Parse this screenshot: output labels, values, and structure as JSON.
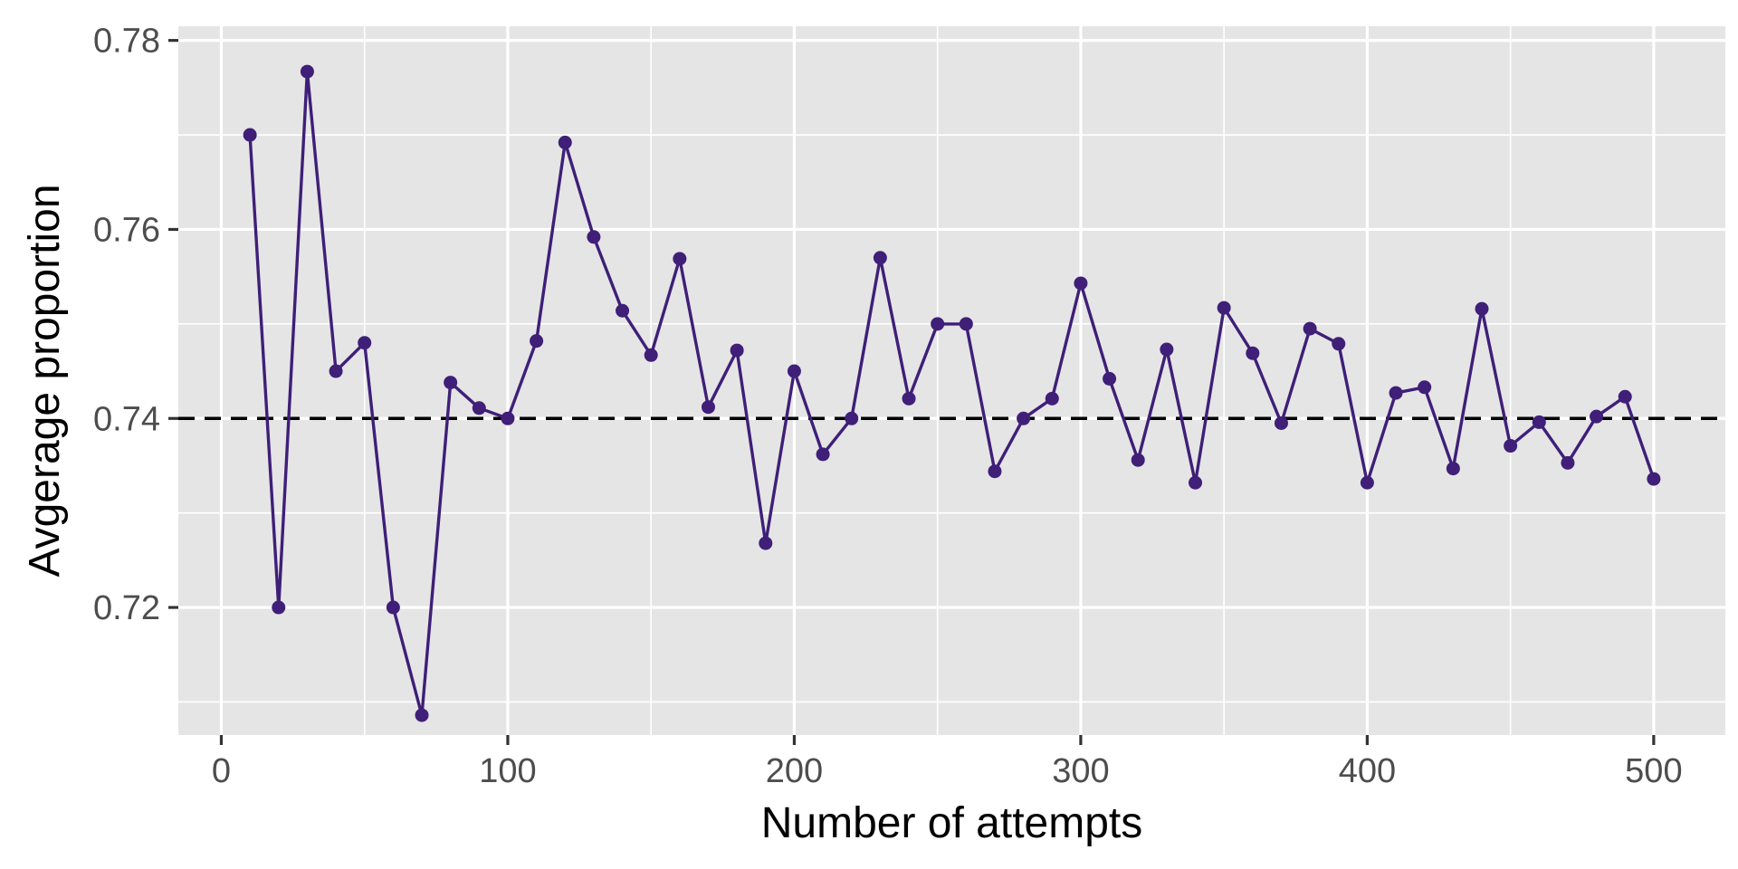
{
  "chart_data": {
    "type": "line",
    "title": "",
    "xlabel": "Number of attempts",
    "ylabel": "Avgerage proportion",
    "xlim": [
      -15,
      525
    ],
    "ylim": [
      0.7065,
      0.7815
    ],
    "x_ticks": [
      0,
      100,
      200,
      300,
      400,
      500
    ],
    "x_tick_labels": [
      "0",
      "100",
      "200",
      "300",
      "400",
      "500"
    ],
    "x_minor_ticks": [
      50,
      150,
      250,
      350,
      450
    ],
    "y_ticks": [
      0.72,
      0.74,
      0.76,
      0.78
    ],
    "y_tick_labels": [
      "0.72",
      "0.74",
      "0.76",
      "0.78"
    ],
    "y_minor_ticks": [
      0.71,
      0.73,
      0.75,
      0.77
    ],
    "grid": true,
    "reference_line": {
      "y": 0.74,
      "style": "dashed",
      "color": "#000000"
    },
    "series": [
      {
        "color": "#3f1f78",
        "x": [
          10,
          20,
          30,
          40,
          50,
          60,
          70,
          80,
          90,
          100,
          110,
          120,
          130,
          140,
          150,
          160,
          170,
          180,
          190,
          200,
          210,
          220,
          230,
          240,
          250,
          260,
          270,
          280,
          290,
          300,
          310,
          320,
          330,
          340,
          350,
          360,
          370,
          380,
          390,
          400,
          410,
          420,
          430,
          440,
          450,
          460,
          470,
          480,
          490,
          500
        ],
        "y": [
          0.77,
          0.72,
          0.7767,
          0.745,
          0.748,
          0.72,
          0.7086,
          0.7438,
          0.7411,
          0.74,
          0.7482,
          0.7692,
          0.7592,
          0.7514,
          0.7467,
          0.7569,
          0.7412,
          0.7472,
          0.7268,
          0.745,
          0.7362,
          0.74,
          0.757,
          0.7421,
          0.75,
          0.75,
          0.7344,
          0.74,
          0.7421,
          0.7543,
          0.7442,
          0.7356,
          0.7473,
          0.7332,
          0.7517,
          0.7469,
          0.7395,
          0.7495,
          0.7479,
          0.7332,
          0.7427,
          0.7433,
          0.7347,
          0.7516,
          0.7371,
          0.7396,
          0.7353,
          0.7402,
          0.7423,
          0.7336
        ]
      }
    ]
  },
  "colors": {
    "panel_background": "#e5e5e5",
    "grid": "#ffffff",
    "line": "#3f1f78",
    "axis_ticks": "#333333",
    "tick_text": "#4d4d4d"
  }
}
